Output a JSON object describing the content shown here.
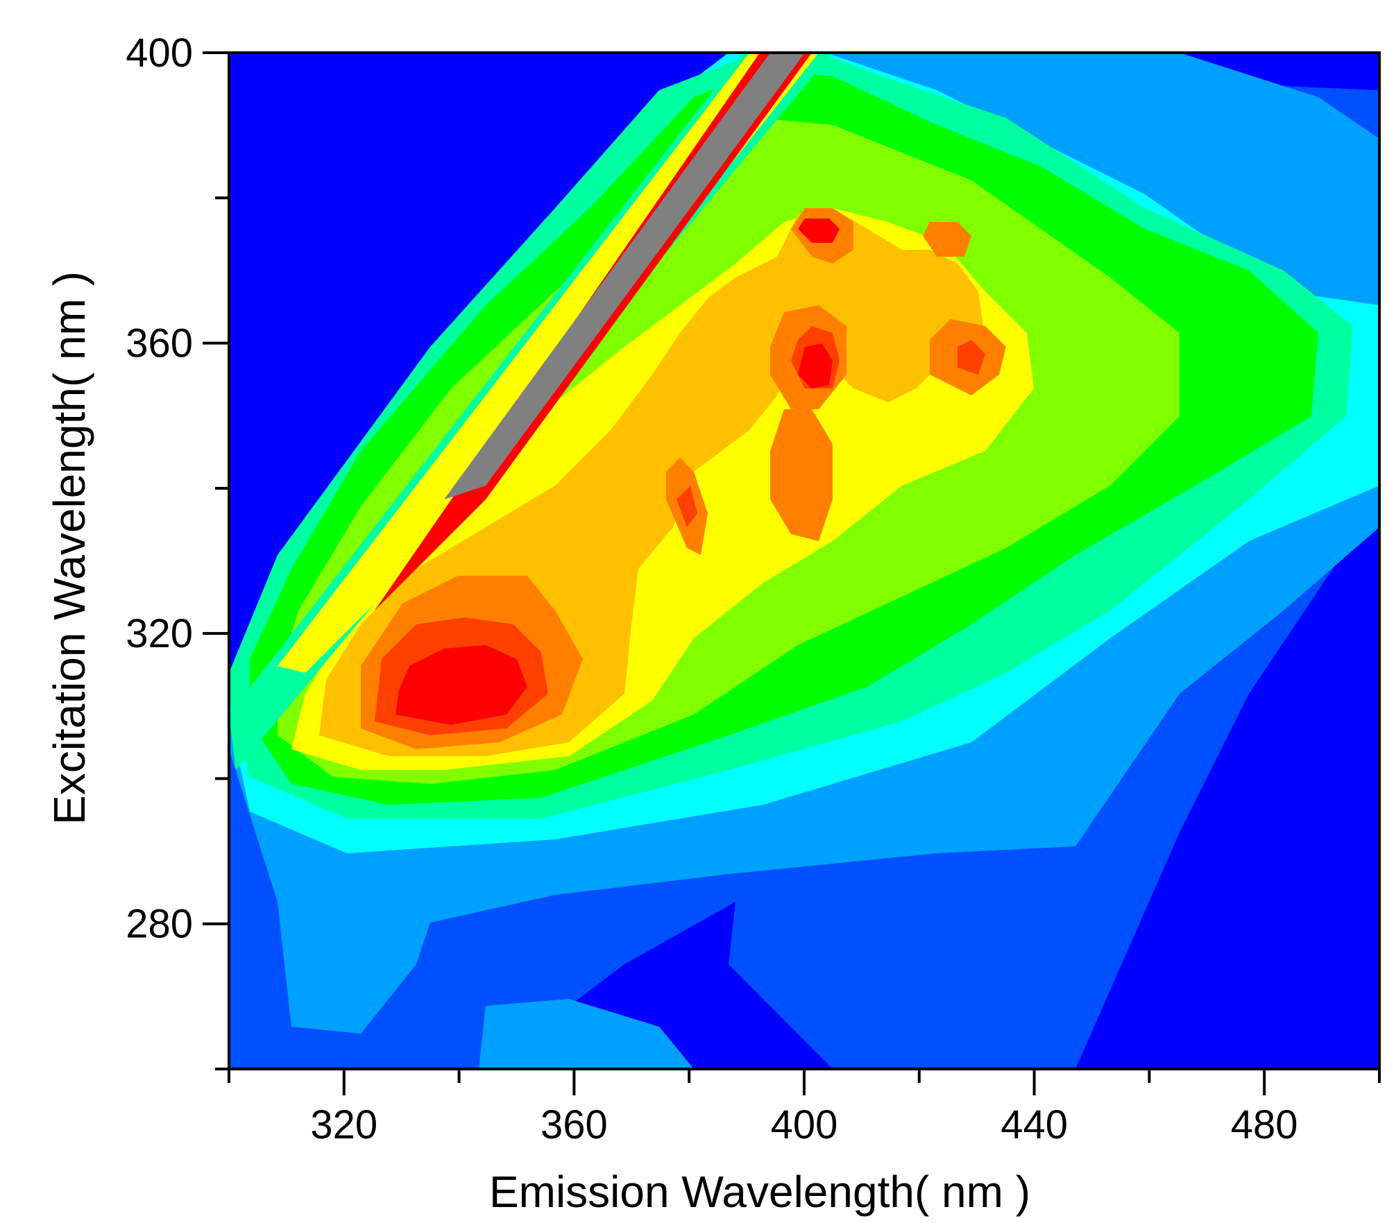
{
  "chart_data": {
    "type": "heatmap",
    "subtype": "filled-contour",
    "title": "",
    "xlabel": "Emission Wavelength( nm )",
    "ylabel": "Excitation Wavelength( nm )",
    "xlim": [
      300,
      500
    ],
    "ylim": [
      260,
      400
    ],
    "x_ticks": [
      320,
      360,
      400,
      440,
      480
    ],
    "y_ticks": [
      280,
      320,
      360,
      400
    ],
    "x_minor_tick_step": 20,
    "y_minor_tick_step": 20,
    "grid": false,
    "colormap": [
      "#0000FF",
      "#0050FF",
      "#00A0FF",
      "#00FFFF",
      "#00FFA0",
      "#00FF00",
      "#80FF00",
      "#FFFF00",
      "#FFC000",
      "#FF8000",
      "#FF4000",
      "#FF0000",
      "#808080"
    ],
    "scatter_band": {
      "description": "Rayleigh scatter line (emission = excitation)",
      "emission_range": [
        300,
        405
      ],
      "excitation_range": [
        300,
        400
      ]
    },
    "peaks": [
      {
        "label": "main peak",
        "emission": 348,
        "excitation": 301,
        "level": "red-orange"
      },
      {
        "label": "peak",
        "emission": 400,
        "excitation": 357,
        "level": "red"
      },
      {
        "label": "peak",
        "emission": 400,
        "excitation": 375,
        "level": "red"
      },
      {
        "label": "peak",
        "emission": 424,
        "excitation": 357,
        "level": "orange"
      },
      {
        "label": "peak",
        "emission": 424,
        "excitation": 375,
        "level": "yellow"
      },
      {
        "label": "peak",
        "emission": 379,
        "excitation": 339,
        "level": "orange"
      },
      {
        "label": "peak",
        "emission": 379,
        "excitation": 356,
        "level": "yellow"
      },
      {
        "label": "peak",
        "emission": 400,
        "excitation": 340,
        "level": "orange"
      }
    ]
  }
}
